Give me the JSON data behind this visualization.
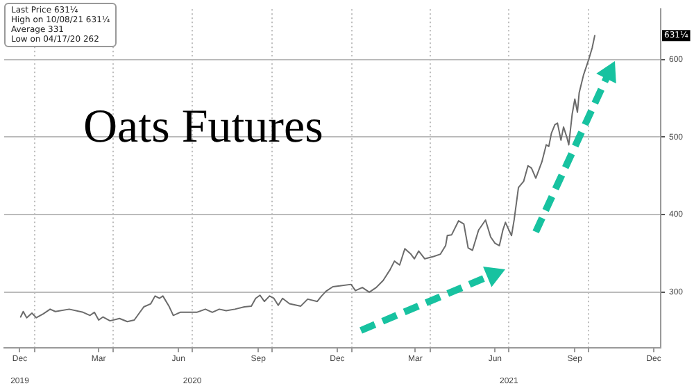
{
  "chart_data": {
    "type": "line",
    "title": "Oats Futures",
    "x": [
      "2019-12-16",
      "2019-12-19",
      "2019-12-23",
      "2019-12-29",
      "2020-01-03",
      "2020-01-11",
      "2020-01-19",
      "2020-01-25",
      "2020-02-10",
      "2020-02-26",
      "2020-03-05",
      "2020-03-10",
      "2020-03-15",
      "2020-03-20",
      "2020-03-28",
      "2020-04-08",
      "2020-04-17",
      "2020-04-25",
      "2020-05-06",
      "2020-05-14",
      "2020-05-19",
      "2020-05-24",
      "2020-05-28",
      "2020-06-04",
      "2020-06-09",
      "2020-06-17",
      "2020-07-06",
      "2020-07-16",
      "2020-07-24",
      "2020-08-01",
      "2020-08-09",
      "2020-08-19",
      "2020-08-30",
      "2020-09-07",
      "2020-09-12",
      "2020-09-17",
      "2020-09-22",
      "2020-09-28",
      "2020-10-03",
      "2020-10-08",
      "2020-10-13",
      "2020-10-21",
      "2020-11-03",
      "2020-11-11",
      "2020-11-22",
      "2020-11-27",
      "2020-12-02",
      "2020-12-10",
      "2020-12-18",
      "2020-12-31",
      "2021-01-05",
      "2021-01-13",
      "2021-01-21",
      "2021-01-29",
      "2021-02-06",
      "2021-02-14",
      "2021-02-19",
      "2021-02-25",
      "2021-03-03",
      "2021-03-10",
      "2021-03-14",
      "2021-03-19",
      "2021-03-26",
      "2021-04-05",
      "2021-04-13",
      "2021-04-19",
      "2021-04-21",
      "2021-04-26",
      "2021-05-04",
      "2021-05-10",
      "2021-05-15",
      "2021-05-20",
      "2021-05-27",
      "2021-06-04",
      "2021-06-10",
      "2021-06-15",
      "2021-06-20",
      "2021-06-24",
      "2021-06-27",
      "2021-07-01",
      "2021-07-04",
      "2021-07-07",
      "2021-07-12",
      "2021-07-18",
      "2021-07-23",
      "2021-07-27",
      "2021-08-01",
      "2021-08-08",
      "2021-08-13",
      "2021-08-16",
      "2021-08-19",
      "2021-08-23",
      "2021-08-26",
      "2021-08-30",
      "2021-09-02",
      "2021-09-06",
      "2021-09-08",
      "2021-09-12",
      "2021-09-15",
      "2021-09-18",
      "2021-09-20",
      "2021-09-25",
      "2021-10-01",
      "2021-10-05",
      "2021-10-08"
    ],
    "values": [
      268,
      275,
      267,
      273,
      267,
      272,
      278,
      275,
      278,
      274,
      270,
      274,
      264,
      268,
      263,
      266,
      262,
      264,
      281,
      285,
      295,
      292,
      295,
      282,
      270,
      274,
      274,
      278,
      274,
      278,
      276,
      278,
      281,
      282,
      292,
      296,
      288,
      295,
      292,
      283,
      292,
      285,
      282,
      291,
      288,
      295,
      301,
      307,
      308,
      310,
      302,
      306,
      300,
      306,
      315,
      329,
      340,
      335,
      356,
      349,
      343,
      353,
      343,
      346,
      349,
      360,
      373,
      374,
      392,
      388,
      357,
      354,
      380,
      393,
      371,
      363,
      360,
      380,
      390,
      380,
      373,
      393,
      435,
      443,
      463,
      460,
      447,
      468,
      490,
      488,
      505,
      516,
      518,
      496,
      513,
      499,
      490,
      530,
      549,
      532,
      557,
      580,
      600,
      615,
      631
    ],
    "color": "#6b6b6b",
    "marker": "none",
    "line_style": "solid",
    "grid": true,
    "legend": false,
    "xlim": [
      "2019-11-27",
      "2021-12-23"
    ],
    "xticks": [
      {
        "value": "2019-12-15",
        "label": "Dec"
      },
      {
        "value": "2020-01-01",
        "label": null
      },
      {
        "value": "2020-03-15",
        "label": "Mar"
      },
      {
        "value": "2020-04-01",
        "label": null
      },
      {
        "value": "2020-06-15",
        "label": "Jun"
      },
      {
        "value": "2020-07-01",
        "label": null
      },
      {
        "value": "2020-09-15",
        "label": "Sep"
      },
      {
        "value": "2020-10-01",
        "label": null
      },
      {
        "value": "2020-12-15",
        "label": "Dec"
      },
      {
        "value": "2021-01-01",
        "label": null
      },
      {
        "value": "2021-03-15",
        "label": "Mar"
      },
      {
        "value": "2021-04-01",
        "label": null
      },
      {
        "value": "2021-06-15",
        "label": "Jun"
      },
      {
        "value": "2021-07-01",
        "label": null
      },
      {
        "value": "2021-09-15",
        "label": "Sep"
      },
      {
        "value": "2021-10-01",
        "label": null
      },
      {
        "value": "2021-12-15",
        "label": "Dec"
      }
    ],
    "x2lim": [
      "2019-11-27",
      "2021-12-23"
    ],
    "x2ticks": [
      {
        "value": "2019-12-15",
        "label": "2019"
      },
      {
        "value": "2020-07-01",
        "label": "2020"
      },
      {
        "value": "2021-07-01",
        "label": "2021"
      }
    ],
    "ylim": [
      228,
      665
    ],
    "yticks": [
      300,
      400,
      500,
      600
    ],
    "annotations": [
      "Last Price 631¼",
      "High on 10/08/21 631¼",
      "Average 331",
      "Low on 04/17/20 262",
      "631¼"
    ]
  }
}
